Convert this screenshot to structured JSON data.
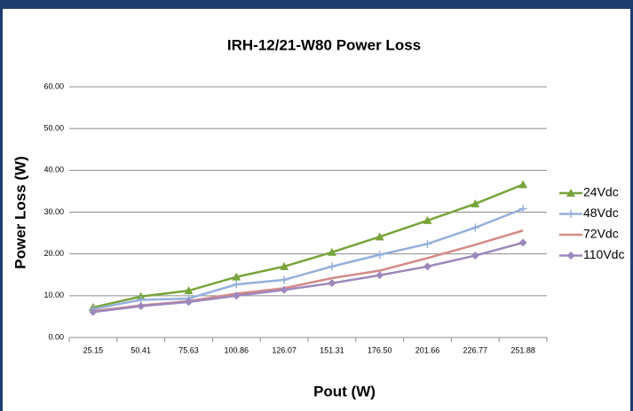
{
  "chart_data": {
    "type": "line",
    "title": "IRH-12/21-W80 Power Loss",
    "xlabel": "Pout (W)",
    "ylabel": "Power Loss (W)",
    "categories": [
      "25.15",
      "50.41",
      "75.63",
      "100.86",
      "126.07",
      "151.31",
      "176.50",
      "201.66",
      "226.77",
      "251.88"
    ],
    "series": [
      {
        "name": "24Vdc",
        "color": "#77a43a",
        "marker": "triangle",
        "values": [
          7.2,
          9.8,
          11.2,
          14.5,
          17.0,
          20.4,
          24.1,
          28.0,
          32.0,
          36.6
        ]
      },
      {
        "name": "48Vdc",
        "color": "#95b0dc",
        "marker": "plus",
        "values": [
          6.8,
          9.0,
          9.3,
          12.7,
          13.8,
          17.0,
          19.8,
          22.4,
          26.3,
          30.8
        ]
      },
      {
        "name": "72Vdc",
        "color": "#d58a88",
        "marker": "none",
        "values": [
          6.3,
          7.7,
          8.7,
          10.5,
          11.8,
          14.2,
          16.0,
          19.0,
          22.2,
          25.6
        ]
      },
      {
        "name": "110Vdc",
        "color": "#9d88bd",
        "marker": "diamond",
        "values": [
          6.1,
          7.5,
          8.5,
          10.0,
          11.4,
          13.0,
          14.9,
          17.0,
          19.6,
          22.7
        ]
      }
    ],
    "ylim": [
      0,
      60
    ],
    "yticks": [
      {
        "value": 0,
        "label": "0.00"
      },
      {
        "value": 10,
        "label": "10.00"
      },
      {
        "value": 20,
        "label": "20.00"
      },
      {
        "value": 30,
        "label": "30.00"
      },
      {
        "value": 40,
        "label": "40.00"
      },
      {
        "value": 50,
        "label": "50.00"
      },
      {
        "value": 60,
        "label": "60.00"
      }
    ],
    "grid": true,
    "legend": "right"
  }
}
